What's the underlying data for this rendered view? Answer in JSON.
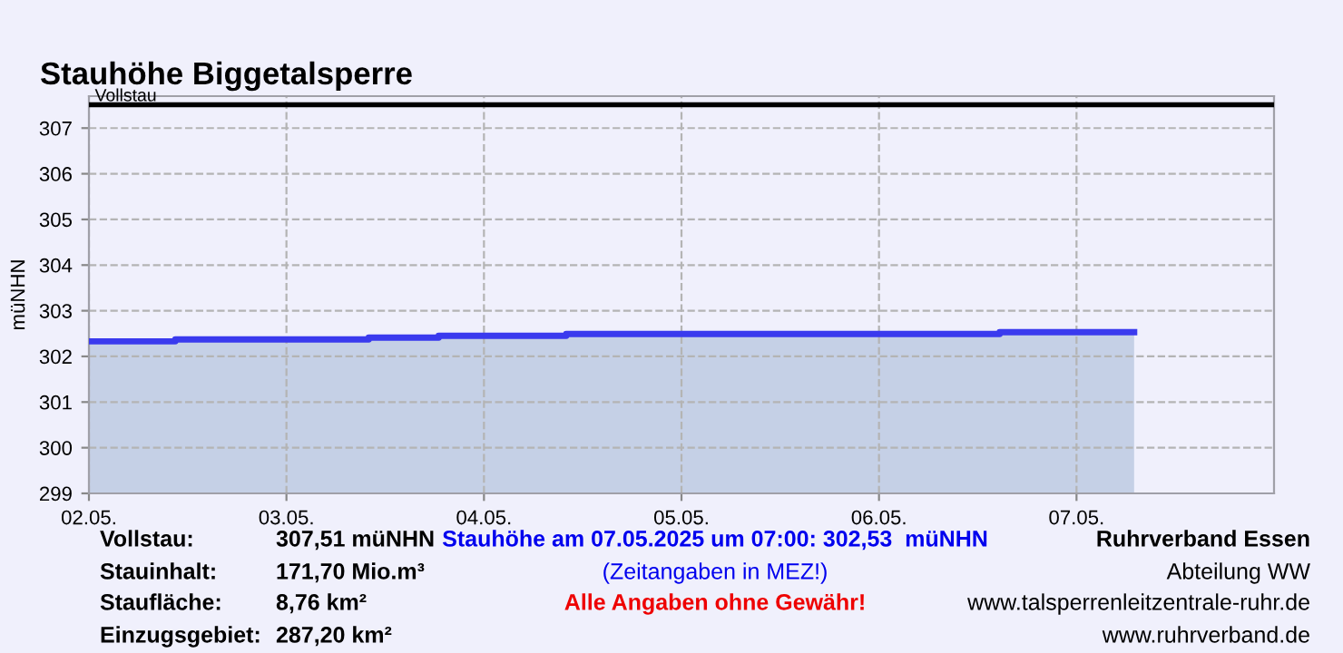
{
  "chart_data": {
    "type": "area",
    "title": "Stauhöhe Biggetalsperre",
    "ylabel": "müNHN",
    "x": [
      "2025-05-02T00:00",
      "2025-05-02T10:30",
      "2025-05-03T10:00",
      "2025-05-03T18:30",
      "2025-05-04T10:00",
      "2025-05-06T14:40",
      "2025-05-07T07:00"
    ],
    "series": [
      {
        "color": "#3a3aee",
        "values": [
          302.33,
          302.37,
          302.41,
          302.45,
          302.49,
          302.53,
          302.53
        ]
      }
    ],
    "xlim": [
      "2025-05-02T00:00",
      "2025-05-08T00:00"
    ],
    "xticks": [
      {
        "value": "2025-05-02",
        "label": "02.05."
      },
      {
        "value": "2025-05-03",
        "label": "03.05."
      },
      {
        "value": "2025-05-04",
        "label": "04.05."
      },
      {
        "value": "2025-05-05",
        "label": "05.05."
      },
      {
        "value": "2025-05-06",
        "label": "06.05."
      },
      {
        "value": "2025-05-07",
        "label": "07.05."
      }
    ],
    "ylim": [
      299,
      307.7
    ],
    "yticks": [
      299,
      300,
      301,
      302,
      303,
      304,
      305,
      306,
      307
    ],
    "grid": true,
    "line_style": "solid",
    "ref_lines": [
      {
        "axis": "y",
        "value": 307.51,
        "label": "Vollstau",
        "color": "#000000"
      }
    ],
    "annotations": [
      "Vollstau:",
      "307,51 müNHN",
      "Stauinhalt:",
      "171,70 Mio.m³",
      "Staufläche:",
      "8,76 km²",
      "Einzugsgebiet:",
      "287,20 km²",
      "Stauhöhe am 07.05.2025 um 07:00: 302,53  müNHN",
      "(Zeitangaben in MEZ!)",
      "Alle Angaben ohne Gewähr!",
      "Ruhrverband Essen",
      "Abteilung WW",
      "www.talsperrenleitzentrale-ruhr.de",
      "www.ruhrverband.de"
    ]
  }
}
